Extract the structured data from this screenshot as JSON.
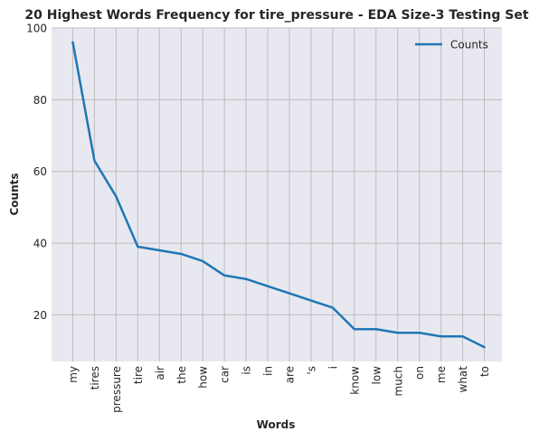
{
  "chart_data": {
    "type": "line",
    "title": "20 Highest Words Frequency for tire_pressure - EDA Size-3 Testing Set",
    "xlabel": "Words",
    "ylabel": "Counts",
    "categories": [
      "my",
      "tires",
      "pressure",
      "tire",
      "air",
      "the",
      "how",
      "car",
      "is",
      "in",
      "are",
      "'s",
      "i",
      "know",
      "low",
      "much",
      "on",
      "me",
      "what",
      "to"
    ],
    "series": [
      {
        "name": "Counts",
        "values": [
          96,
          63,
          53,
          39,
          38,
          37,
          35,
          31,
          30,
          28,
          26,
          24,
          22,
          16,
          16,
          15,
          15,
          14,
          14,
          11
        ]
      }
    ],
    "ylim": [
      7,
      100
    ],
    "yticks": [
      20,
      40,
      60,
      80,
      100
    ],
    "grid": true,
    "legend": "top-right",
    "colors": {
      "line": "#1f77b4",
      "plot_bg": "#e8e8f1",
      "grid": "#bdbdbd"
    }
  }
}
